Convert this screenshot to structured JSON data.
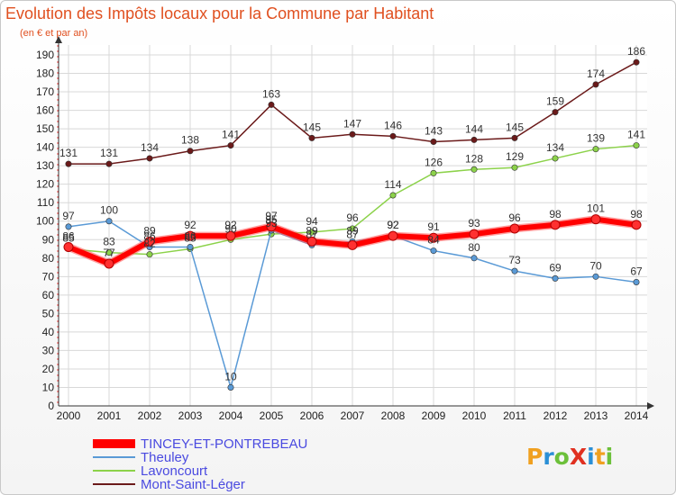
{
  "chart_data": {
    "type": "line",
    "title": "Evolution des Impôts locaux pour la Commune par Habitant",
    "subtitle": "(en € et par an)",
    "categories": [
      "2000",
      "2001",
      "2002",
      "2003",
      "2004",
      "2005",
      "2006",
      "2007",
      "2008",
      "2009",
      "2010",
      "2011",
      "2012",
      "2013",
      "2014"
    ],
    "ylim": [
      0,
      190
    ],
    "yticks": [
      0,
      10,
      20,
      30,
      40,
      50,
      60,
      70,
      80,
      90,
      100,
      110,
      120,
      130,
      140,
      150,
      160,
      170,
      180,
      190
    ],
    "grid": true,
    "series": [
      {
        "name": "Mont-Saint-Léger",
        "color": "#6b1a1a",
        "values": [
          131,
          131,
          134,
          138,
          141,
          163,
          145,
          147,
          146,
          143,
          144,
          145,
          159,
          174,
          186
        ]
      },
      {
        "name": "Lavoncourt",
        "color": "#8cd24a",
        "values": [
          85,
          83,
          82,
          85,
          90,
          93,
          94,
          96,
          114,
          126,
          128,
          129,
          134,
          139,
          141
        ]
      },
      {
        "name": "Theuley",
        "color": "#5a9ad6",
        "values": [
          97,
          100,
          86,
          86,
          10,
          95,
          87,
          89,
          92,
          84,
          80,
          73,
          69,
          70,
          67
        ]
      },
      {
        "name": "TINCEY-ET-PONTREBEAU",
        "color": "#ff0000",
        "values": [
          86,
          77,
          89,
          92,
          92,
          97,
          89,
          87,
          92,
          91,
          93,
          96,
          98,
          101,
          98
        ]
      }
    ],
    "legend": [
      "TINCEY-ET-PONTREBEAU",
      "Theuley",
      "Lavoncourt",
      "Mont-Saint-Léger"
    ]
  },
  "brand": {
    "logo_text": "ProXiti"
  }
}
